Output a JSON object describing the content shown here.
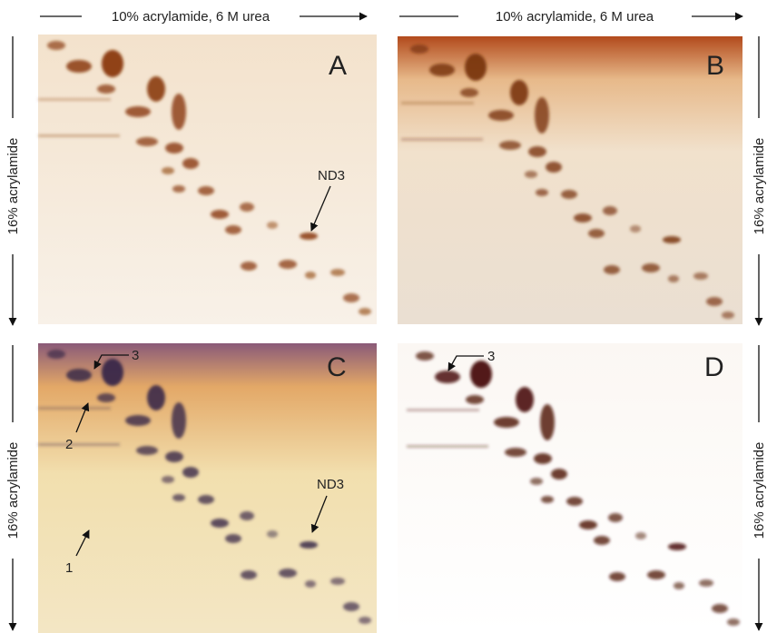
{
  "top_labels": [
    "10% acrylamide, 6 M urea",
    "10% acrylamide, 6 M urea"
  ],
  "side_labels": [
    "16% acrylamide",
    "16% acrylamide",
    "16% acrylamide",
    "16% acrylamide"
  ],
  "panels": [
    {
      "letter": "A",
      "annotations": [
        "ND3"
      ]
    },
    {
      "letter": "B",
      "annotations": []
    },
    {
      "letter": "C",
      "annotations": [
        "3",
        "2",
        "1",
        "ND3"
      ]
    },
    {
      "letter": "D",
      "annotations": [
        "3"
      ]
    }
  ]
}
